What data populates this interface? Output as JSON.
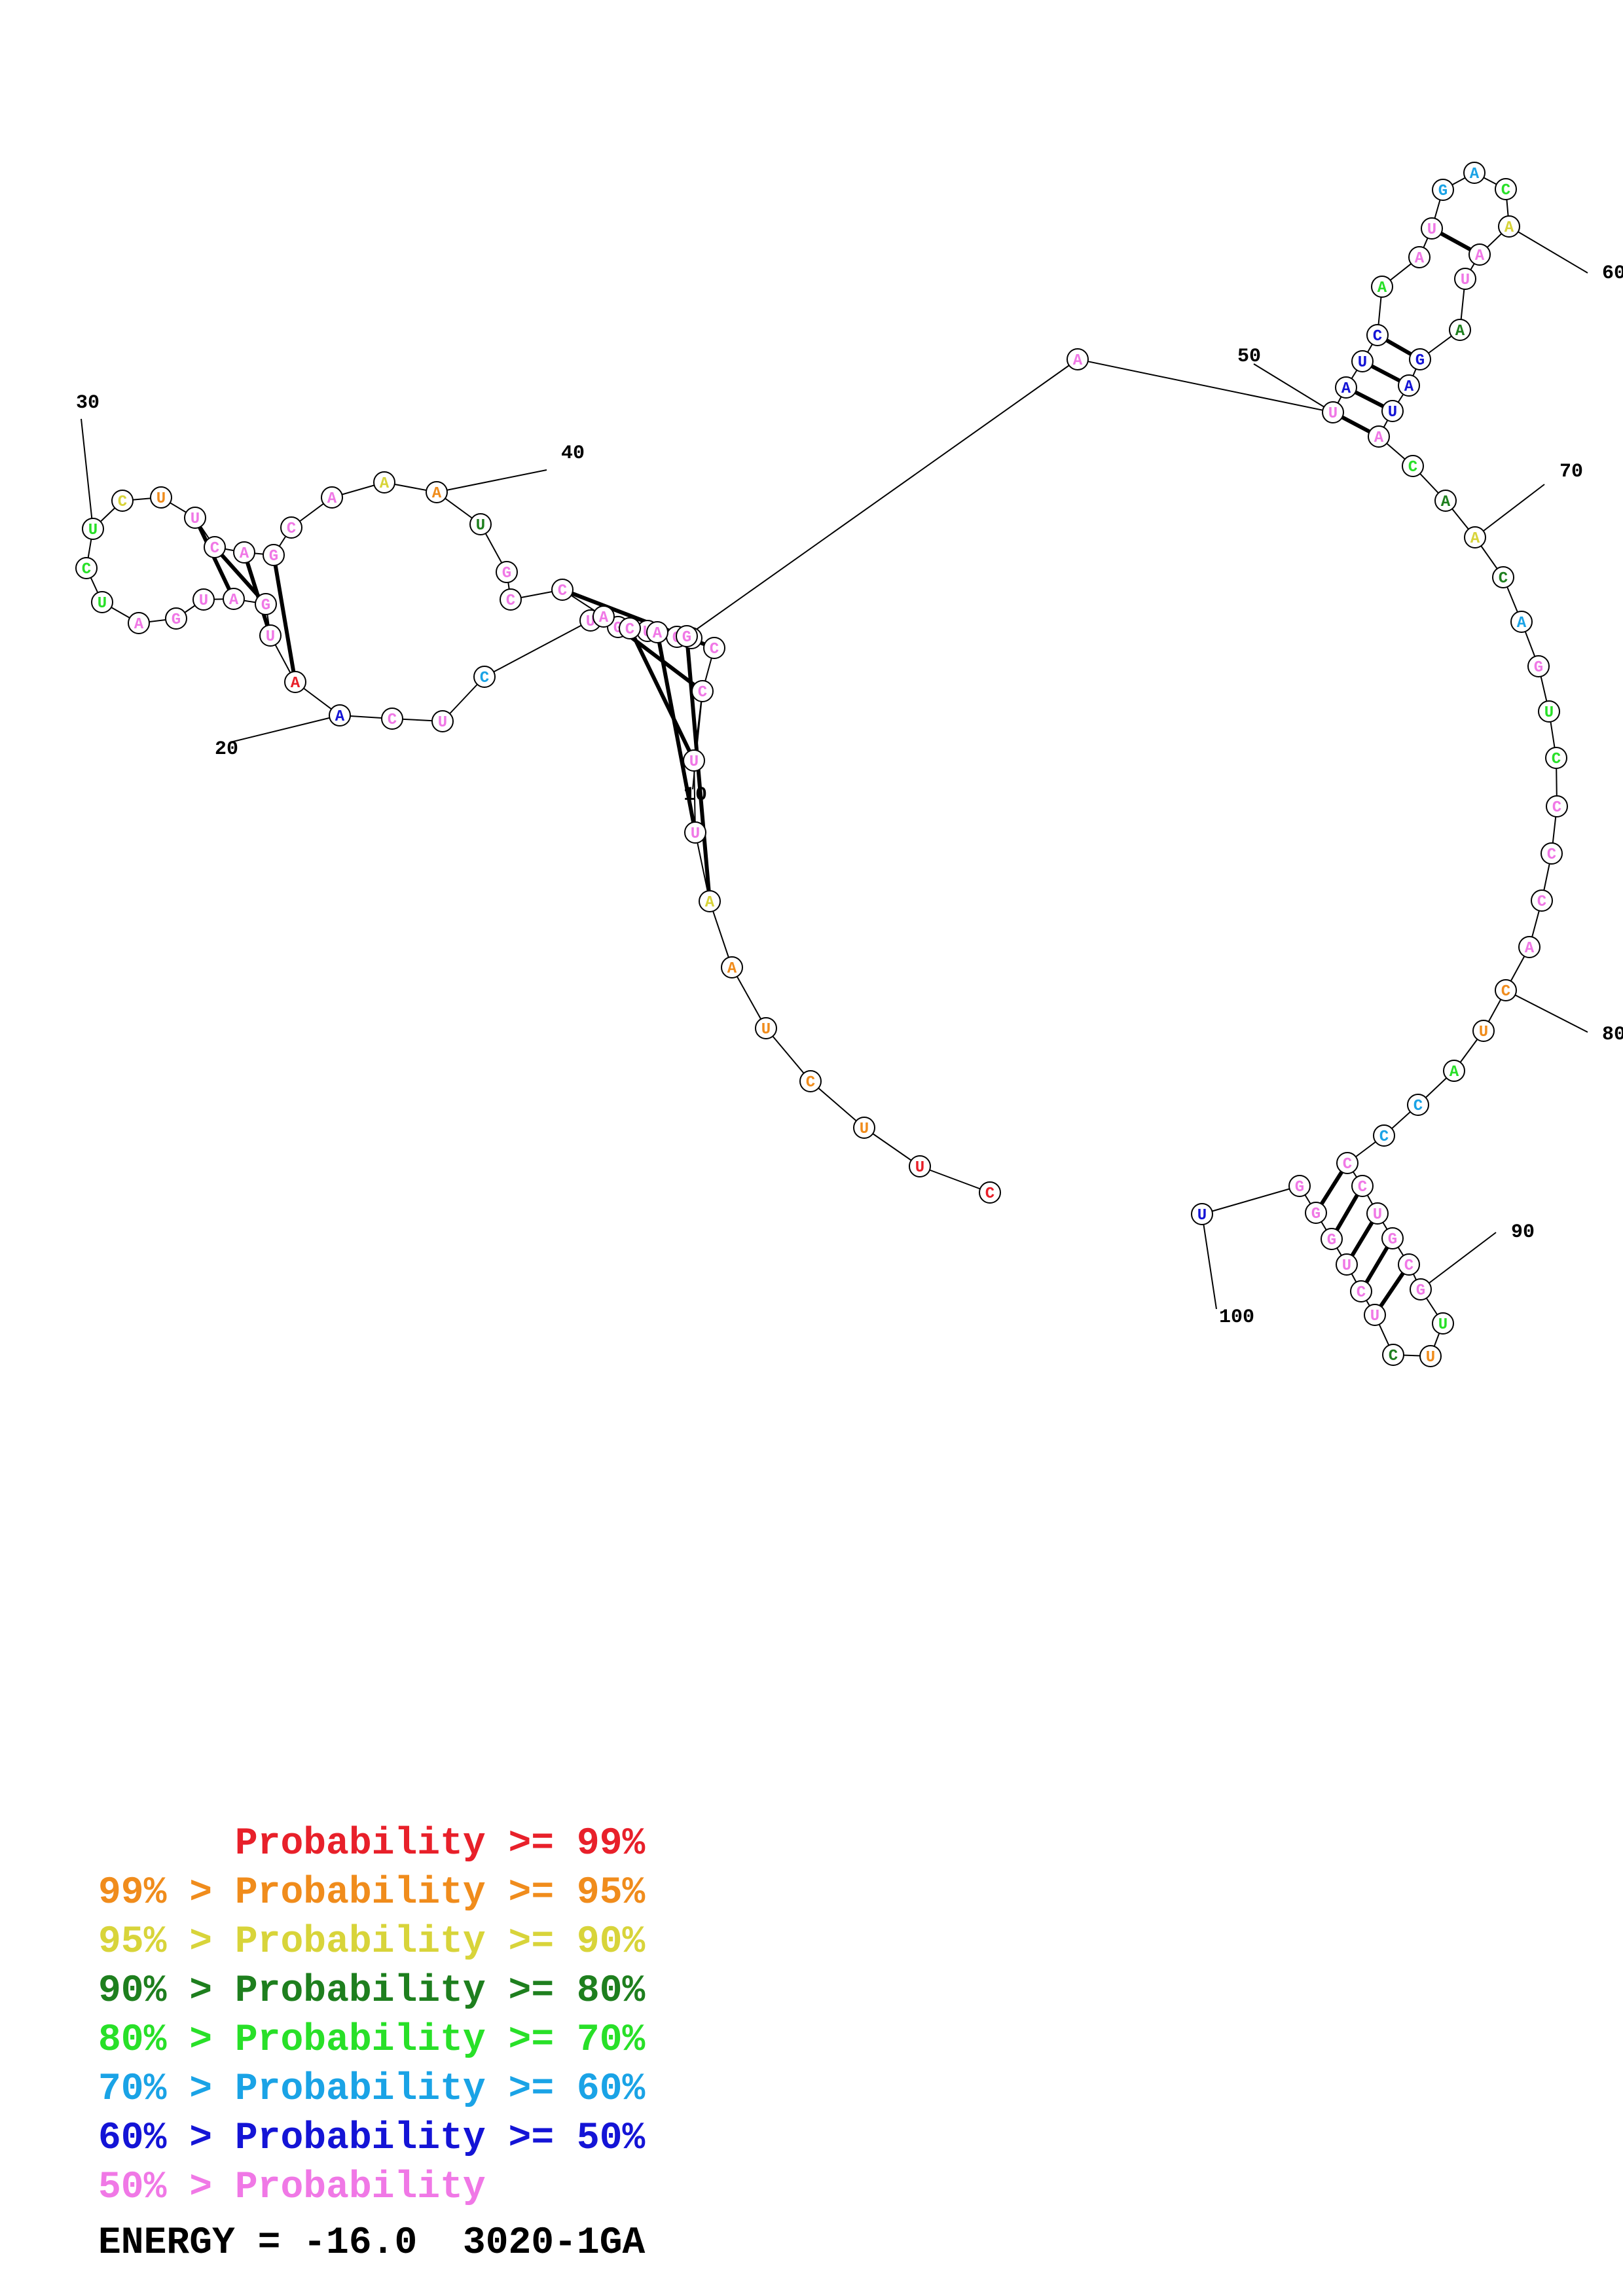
{
  "nucleotides": [
    {
      "n": 1,
      "b": "C",
      "c": "red"
    },
    {
      "n": 2,
      "b": "U",
      "c": "red"
    },
    {
      "n": 3,
      "b": "U",
      "c": "orange"
    },
    {
      "n": 4,
      "b": "C",
      "c": "orange"
    },
    {
      "n": 5,
      "b": "U",
      "c": "orange"
    },
    {
      "n": 6,
      "b": "A",
      "c": "orange"
    },
    {
      "n": 7,
      "b": "A",
      "c": "yellow"
    },
    {
      "n": 8,
      "b": "U",
      "c": "pink"
    },
    {
      "n": 9,
      "b": "U",
      "c": "pink"
    },
    {
      "n": 10,
      "b": "C",
      "c": "pink"
    },
    {
      "n": 11,
      "b": "C",
      "c": "pink"
    },
    {
      "n": 12,
      "b": "U",
      "c": "pink"
    },
    {
      "n": 13,
      "b": "G",
      "c": "pink"
    },
    {
      "n": 14,
      "b": "U",
      "c": "pink"
    },
    {
      "n": 15,
      "b": "G",
      "c": "pink"
    },
    {
      "n": 16,
      "b": "U",
      "c": "pink"
    },
    {
      "n": 17,
      "b": "C",
      "c": "lightblue"
    },
    {
      "n": 18,
      "b": "U",
      "c": "pink"
    },
    {
      "n": 19,
      "b": "C",
      "c": "pink"
    },
    {
      "n": 20,
      "b": "A",
      "c": "blue"
    },
    {
      "n": 21,
      "b": "A",
      "c": "red"
    },
    {
      "n": 22,
      "b": "U",
      "c": "pink"
    },
    {
      "n": 23,
      "b": "G",
      "c": "pink"
    },
    {
      "n": 24,
      "b": "A",
      "c": "pink"
    },
    {
      "n": 25,
      "b": "U",
      "c": "pink"
    },
    {
      "n": 26,
      "b": "G",
      "c": "pink"
    },
    {
      "n": 27,
      "b": "A",
      "c": "pink"
    },
    {
      "n": 28,
      "b": "U",
      "c": "green"
    },
    {
      "n": 29,
      "b": "C",
      "c": "green"
    },
    {
      "n": 30,
      "b": "U",
      "c": "green"
    },
    {
      "n": 31,
      "b": "C",
      "c": "yellow"
    },
    {
      "n": 32,
      "b": "U",
      "c": "orange"
    },
    {
      "n": 33,
      "b": "U",
      "c": "pink"
    },
    {
      "n": 34,
      "b": "C",
      "c": "pink"
    },
    {
      "n": 35,
      "b": "A",
      "c": "pink"
    },
    {
      "n": 36,
      "b": "G",
      "c": "pink"
    },
    {
      "n": 37,
      "b": "C",
      "c": "pink"
    },
    {
      "n": 38,
      "b": "A",
      "c": "pink"
    },
    {
      "n": 39,
      "b": "A",
      "c": "yellow"
    },
    {
      "n": 40,
      "b": "A",
      "c": "orange"
    },
    {
      "n": 41,
      "b": "U",
      "c": "darkgreen"
    },
    {
      "n": 42,
      "b": "G",
      "c": "pink"
    },
    {
      "n": 43,
      "b": "C",
      "c": "pink"
    },
    {
      "n": 44,
      "b": "C",
      "c": "pink"
    },
    {
      "n": 45,
      "b": "A",
      "c": "pink"
    },
    {
      "n": 46,
      "b": "C",
      "c": "pink"
    },
    {
      "n": 47,
      "b": "A",
      "c": "pink"
    },
    {
      "n": 48,
      "b": "G",
      "c": "pink"
    },
    {
      "n": 49,
      "b": "A",
      "c": "pink"
    },
    {
      "n": 50,
      "b": "U",
      "c": "pink"
    },
    {
      "n": 51,
      "b": "A",
      "c": "blue"
    },
    {
      "n": 52,
      "b": "U",
      "c": "blue"
    },
    {
      "n": 53,
      "b": "C",
      "c": "blue"
    },
    {
      "n": 54,
      "b": "A",
      "c": "green"
    },
    {
      "n": 55,
      "b": "A",
      "c": "pink"
    },
    {
      "n": 56,
      "b": "U",
      "c": "pink"
    },
    {
      "n": 57,
      "b": "G",
      "c": "lightblue"
    },
    {
      "n": 58,
      "b": "A",
      "c": "lightblue"
    },
    {
      "n": 59,
      "b": "C",
      "c": "green"
    },
    {
      "n": 60,
      "b": "A",
      "c": "yellow"
    },
    {
      "n": 61,
      "b": "A",
      "c": "pink"
    },
    {
      "n": 62,
      "b": "U",
      "c": "pink"
    },
    {
      "n": 63,
      "b": "A",
      "c": "darkgreen"
    },
    {
      "n": 64,
      "b": "G",
      "c": "blue"
    },
    {
      "n": 65,
      "b": "A",
      "c": "blue"
    },
    {
      "n": 66,
      "b": "U",
      "c": "blue"
    },
    {
      "n": 67,
      "b": "A",
      "c": "pink"
    },
    {
      "n": 68,
      "b": "C",
      "c": "green"
    },
    {
      "n": 69,
      "b": "A",
      "c": "darkgreen"
    },
    {
      "n": 70,
      "b": "A",
      "c": "yellow"
    },
    {
      "n": 71,
      "b": "C",
      "c": "darkgreen"
    },
    {
      "n": 72,
      "b": "A",
      "c": "lightblue"
    },
    {
      "n": 73,
      "b": "G",
      "c": "pink"
    },
    {
      "n": 74,
      "b": "U",
      "c": "green"
    },
    {
      "n": 75,
      "b": "C",
      "c": "green"
    },
    {
      "n": 76,
      "b": "C",
      "c": "pink"
    },
    {
      "n": 77,
      "b": "C",
      "c": "pink"
    },
    {
      "n": 78,
      "b": "C",
      "c": "pink"
    },
    {
      "n": 79,
      "b": "A",
      "c": "pink"
    },
    {
      "n": 80,
      "b": "C",
      "c": "orange"
    },
    {
      "n": 81,
      "b": "U",
      "c": "orange"
    },
    {
      "n": 82,
      "b": "A",
      "c": "green"
    },
    {
      "n": 83,
      "b": "C",
      "c": "lightblue"
    },
    {
      "n": 84,
      "b": "C",
      "c": "lightblue"
    },
    {
      "n": 85,
      "b": "C",
      "c": "pink"
    },
    {
      "n": 86,
      "b": "C",
      "c": "pink"
    },
    {
      "n": 87,
      "b": "U",
      "c": "pink"
    },
    {
      "n": 88,
      "b": "G",
      "c": "pink"
    },
    {
      "n": 89,
      "b": "C",
      "c": "pink"
    },
    {
      "n": 90,
      "b": "G",
      "c": "pink"
    },
    {
      "n": 91,
      "b": "U",
      "c": "green"
    },
    {
      "n": 92,
      "b": "U",
      "c": "orange"
    },
    {
      "n": 93,
      "b": "C",
      "c": "darkgreen"
    },
    {
      "n": 94,
      "b": "U",
      "c": "pink"
    },
    {
      "n": 95,
      "b": "C",
      "c": "pink"
    },
    {
      "n": 96,
      "b": "U",
      "c": "pink"
    },
    {
      "n": 97,
      "b": "G",
      "c": "pink"
    },
    {
      "n": 98,
      "b": "G",
      "c": "pink"
    },
    {
      "n": 99,
      "b": "G",
      "c": "pink"
    },
    {
      "n": 100,
      "b": "U",
      "c": "blue"
    }
  ],
  "pairs": [
    [
      7,
      48
    ],
    [
      8,
      47
    ],
    [
      9,
      46
    ],
    [
      10,
      45
    ],
    [
      11,
      44
    ],
    [
      21,
      36
    ],
    [
      22,
      35
    ],
    [
      23,
      34
    ],
    [
      24,
      33
    ],
    [
      50,
      67
    ],
    [
      51,
      66
    ],
    [
      52,
      65
    ],
    [
      53,
      64
    ],
    [
      56,
      61
    ],
    [
      85,
      98
    ],
    [
      86,
      97
    ],
    [
      87,
      96
    ],
    [
      88,
      95
    ],
    [
      89,
      94
    ]
  ],
  "numbers": [
    "10",
    "20",
    "30",
    "40",
    "50",
    "60",
    "70",
    "80",
    "90",
    "100"
  ],
  "legend": [
    {
      "prefix": "",
      "label": "Probability >= 99%",
      "c": "red"
    },
    {
      "prefix": "99% > ",
      "label": "Probability >= 95%",
      "c": "orange"
    },
    {
      "prefix": "95% > ",
      "label": "Probability >= 90%",
      "c": "yellow"
    },
    {
      "prefix": "90% > ",
      "label": "Probability >= 80%",
      "c": "darkgreen"
    },
    {
      "prefix": "80% > ",
      "label": "Probability >= 70%",
      "c": "green"
    },
    {
      "prefix": "70% > ",
      "label": "Probability >= 60%",
      "c": "lightblue"
    },
    {
      "prefix": "60% > ",
      "label": "Probability >= 50%",
      "c": "blue"
    },
    {
      "prefix": "50% > ",
      "label": "Probability",
      "c": "pink"
    }
  ],
  "colors": {
    "red": "#e8202a",
    "orange": "#f08c1c",
    "yellow": "#d8d43a",
    "darkgreen": "#1e7f1e",
    "green": "#28e028",
    "lightblue": "#1aa3e6",
    "blue": "#1414d6",
    "pink": "#f078e6"
  },
  "energy": {
    "label": "ENERGY = -16.0",
    "id": "3020-1GA"
  }
}
